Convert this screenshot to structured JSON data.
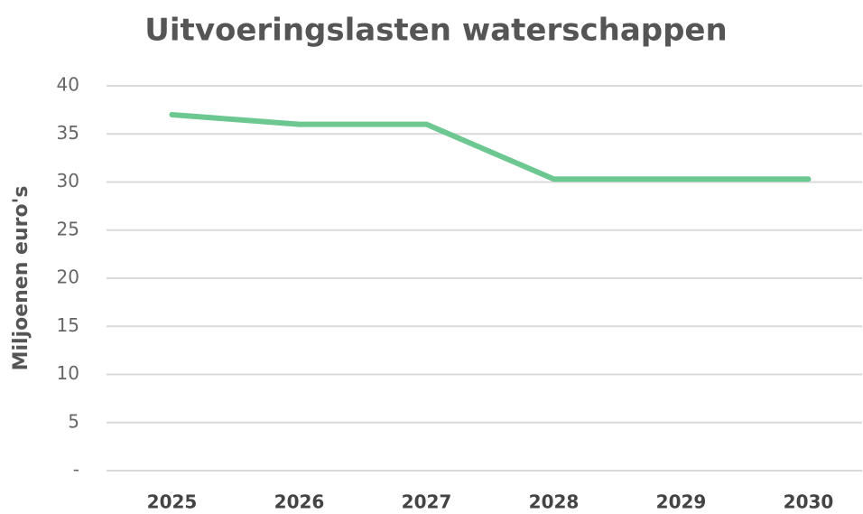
{
  "chart_data": {
    "type": "line",
    "title": "Uitvoeringslasten waterschappen",
    "y_label": "Miljoenen euro's",
    "categories": [
      "2025",
      "2026",
      "2027",
      "2028",
      "2029",
      "2030"
    ],
    "values": [
      37,
      36,
      36,
      30.3,
      30.3,
      30.3
    ],
    "color": "#6cc890",
    "ylim": [
      0,
      40
    ],
    "yticks": [
      {
        "value": 0,
        "label": "-"
      },
      5,
      10,
      15,
      20,
      25,
      30,
      35,
      40
    ],
    "grid": true
  }
}
